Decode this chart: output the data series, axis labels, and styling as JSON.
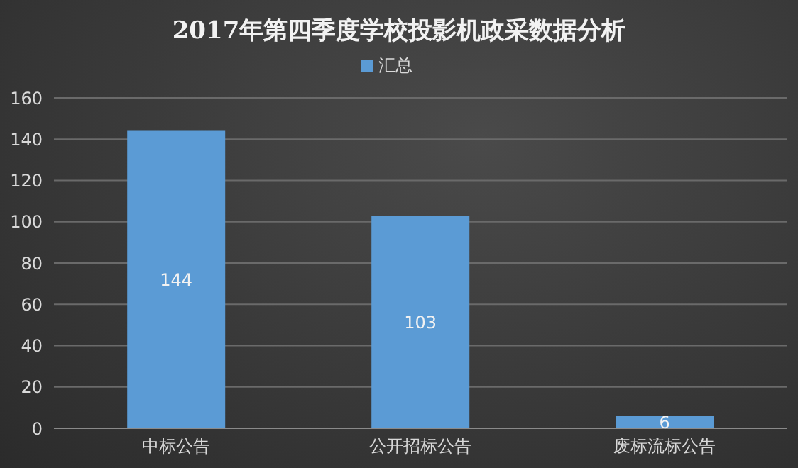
{
  "chart_data": {
    "type": "bar",
    "title": "2017年第四季度学校投影机政采数据分析",
    "categories": [
      "中标公告",
      "公开招标公告",
      "废标流标公告"
    ],
    "series": [
      {
        "name": "汇总",
        "color": "#5b9bd5",
        "values": [
          144,
          103,
          6
        ]
      }
    ],
    "ylim": [
      0,
      160
    ],
    "yticks": [
      0,
      20,
      40,
      60,
      80,
      100,
      120,
      140,
      160
    ],
    "grid": "y",
    "legend": "top",
    "data_labels": true
  }
}
